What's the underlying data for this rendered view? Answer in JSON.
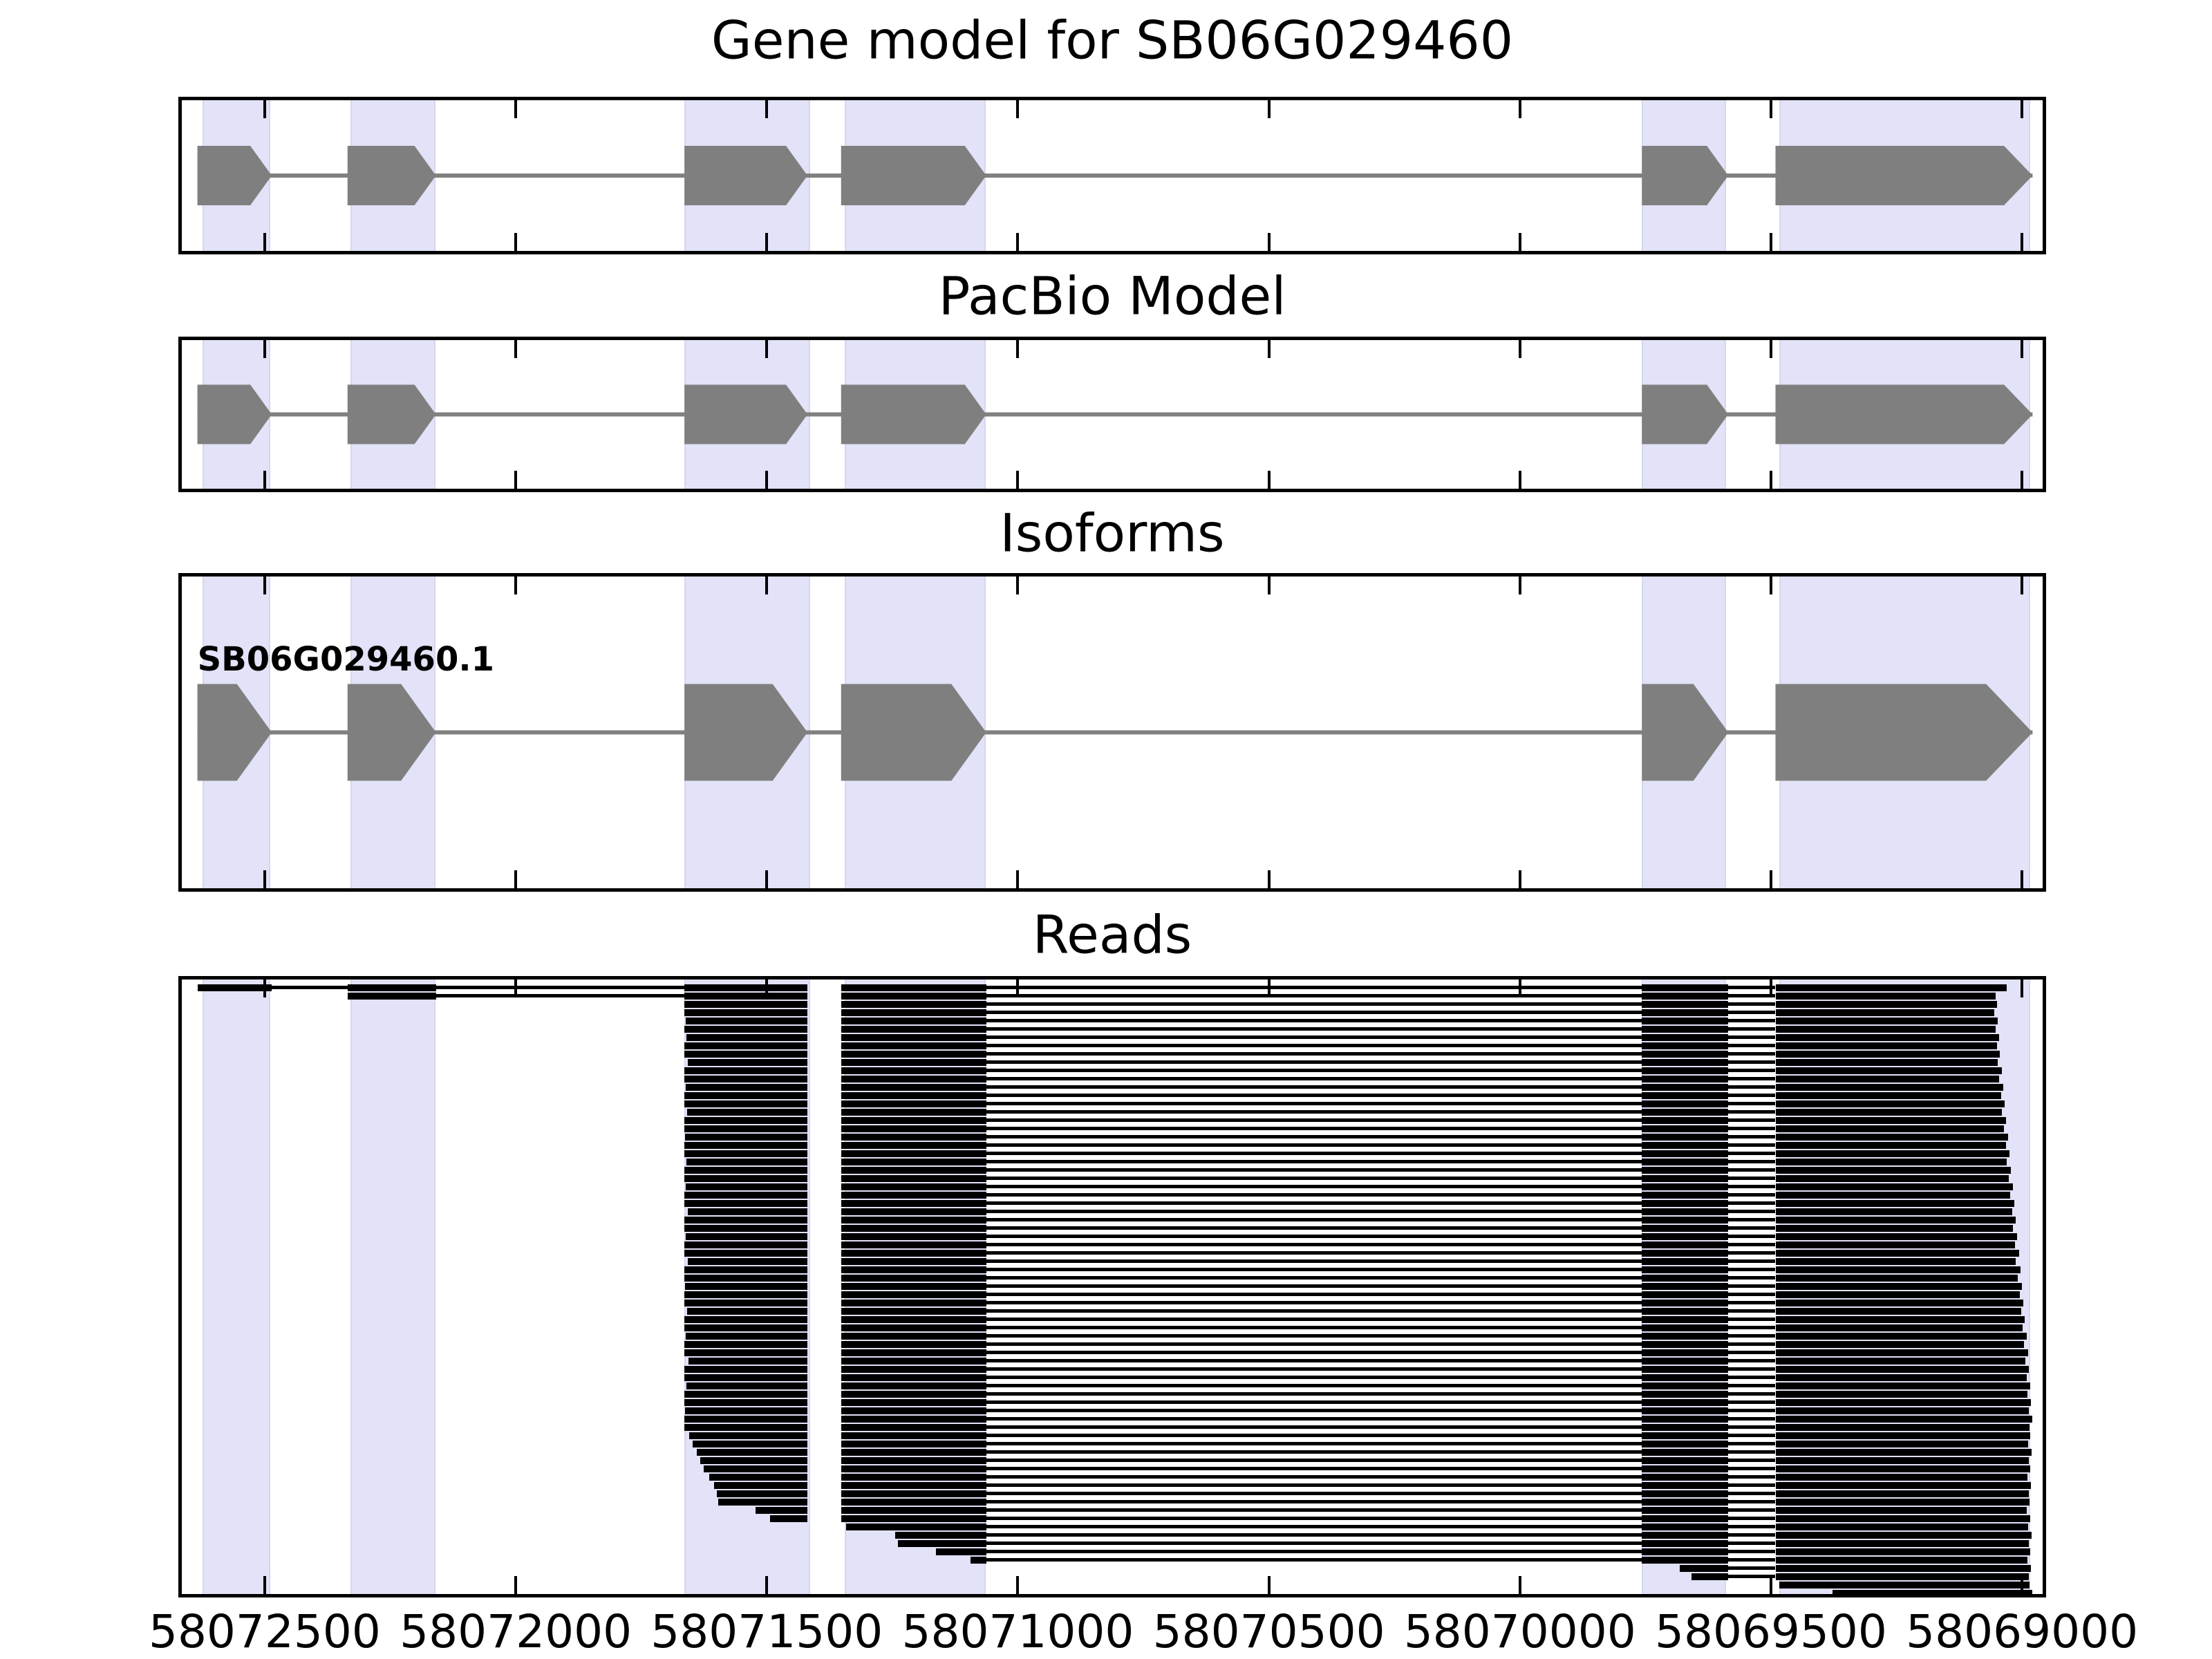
{
  "figure_title": "Gene model for SB06G029460",
  "chart_data": {
    "type": "bar",
    "title": "Gene model for SB06G029460",
    "subtitle_panels": [
      "Gene model for SB06G029460",
      "PacBio Model",
      "Isoforms",
      "Reads"
    ],
    "xlabel": "",
    "ylabel": "",
    "grid": false,
    "legend": "none",
    "x_axis": {
      "orientation": "decreasing-left-to-right",
      "domain": [
        58072672,
        58068952
      ],
      "ticks": [
        58072500,
        58072000,
        58071500,
        58071000,
        58070500,
        58070000,
        58069500,
        58069000
      ],
      "tick_labels": [
        "58072500",
        "58072000",
        "58071500",
        "58071000",
        "58070500",
        "58070000",
        "58069500",
        "58069000"
      ]
    },
    "panels": [
      {
        "key": "gene-model",
        "title": "Gene model for SB06G029460",
        "kind": "model"
      },
      {
        "key": "pacbio-model",
        "title": "PacBio Model",
        "kind": "model"
      },
      {
        "key": "isoforms",
        "title": "Isoforms",
        "kind": "model",
        "label": "SB06G029460.1"
      },
      {
        "key": "reads",
        "title": "Reads",
        "kind": "reads"
      }
    ],
    "isoform_label": "SB06G029460.1",
    "gene_span": [
      58072634,
      58068979
    ],
    "exons": [
      [
        58072634,
        58072486
      ],
      [
        58072335,
        58072159
      ],
      [
        58071664,
        58071419
      ],
      [
        58071352,
        58071063
      ],
      [
        58069757,
        58069585
      ],
      [
        58069491,
        58068979
      ]
    ],
    "highlight_regions": [
      [
        58072624,
        58072489
      ],
      [
        58072329,
        58072160
      ],
      [
        58071664,
        58071414
      ],
      [
        58071345,
        58071064
      ],
      [
        58069757,
        58069589
      ],
      [
        58069484,
        58068983
      ]
    ],
    "intron_line_gaps": [
      [
        58072486,
        58072335
      ],
      [
        58072159,
        58071664
      ],
      [
        58071063,
        58069757
      ],
      [
        58069585,
        58069491
      ]
    ],
    "reads": [
      [
        58072634,
        58069030
      ],
      [
        58072335,
        58069052
      ],
      [
        58071664,
        58069050
      ],
      [
        58071664,
        58069055
      ],
      [
        58071662,
        58069048
      ],
      [
        58071664,
        58069052
      ],
      [
        58071660,
        58069046
      ],
      [
        58071664,
        58069050
      ],
      [
        58071664,
        58069044
      ],
      [
        58071658,
        58069048
      ],
      [
        58071664,
        58069040
      ],
      [
        58071664,
        58069045
      ],
      [
        58071661,
        58069038
      ],
      [
        58071664,
        58069042
      ],
      [
        58071664,
        58069035
      ],
      [
        58071659,
        58069040
      ],
      [
        58071664,
        58069032
      ],
      [
        58071664,
        58069036
      ],
      [
        58071663,
        58069028
      ],
      [
        58071664,
        58069032
      ],
      [
        58071664,
        58069025
      ],
      [
        58071660,
        58069030
      ],
      [
        58071664,
        58069022
      ],
      [
        58071664,
        58069026
      ],
      [
        58071662,
        58069018
      ],
      [
        58071664,
        58069024
      ],
      [
        58071664,
        58069015
      ],
      [
        58071657,
        58069020
      ],
      [
        58071664,
        58069012
      ],
      [
        58071664,
        58069018
      ],
      [
        58071661,
        58069010
      ],
      [
        58071664,
        58069014
      ],
      [
        58071664,
        58069006
      ],
      [
        58071658,
        58069012
      ],
      [
        58071664,
        58069003
      ],
      [
        58071664,
        58069008
      ],
      [
        58071663,
        58069000
      ],
      [
        58071664,
        58069005
      ],
      [
        58071664,
        58068997
      ],
      [
        58071659,
        58069002
      ],
      [
        58071664,
        58068994
      ],
      [
        58071664,
        58068999
      ],
      [
        58071662,
        58068991
      ],
      [
        58071664,
        58068996
      ],
      [
        58071664,
        58068988
      ],
      [
        58071656,
        58068993
      ],
      [
        58071664,
        58068986
      ],
      [
        58071664,
        58068991
      ],
      [
        58071660,
        58068984
      ],
      [
        58071664,
        58068989
      ],
      [
        58071664,
        58068982
      ],
      [
        58071663,
        58068987
      ],
      [
        58071664,
        58068980
      ],
      [
        58071664,
        58068985
      ],
      [
        58071655,
        58068983
      ],
      [
        58071648,
        58068988
      ],
      [
        58071640,
        58068981
      ],
      [
        58071632,
        58068986
      ],
      [
        58071625,
        58068984
      ],
      [
        58071615,
        58068989
      ],
      [
        58071605,
        58068982
      ],
      [
        58071600,
        58068987
      ],
      [
        58071597,
        58068985
      ],
      [
        58071522,
        58068990
      ],
      [
        58071493,
        58068983
      ],
      [
        58071342,
        58068988
      ],
      [
        58071244,
        58068981
      ],
      [
        58071239,
        58068986
      ],
      [
        58071163,
        58068984
      ],
      [
        58071094,
        58068989
      ],
      [
        58069681,
        58068982
      ],
      [
        58069658,
        58068987
      ],
      [
        58069484,
        58068985
      ],
      [
        58069377,
        58068980
      ]
    ],
    "colors": {
      "exon": "#7f7f7f",
      "model_line": "#808080",
      "highlight": "#e2e2f8",
      "read": "#000000",
      "background": "#ffffff",
      "border": "#000000"
    }
  }
}
